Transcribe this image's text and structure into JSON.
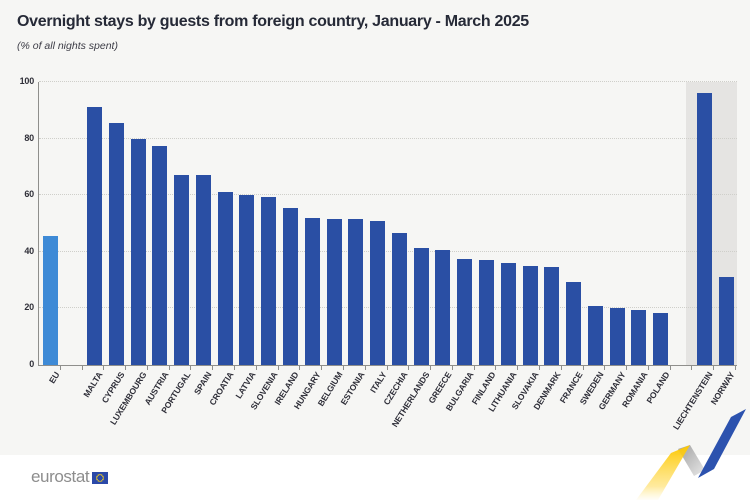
{
  "title": "Overnight stays by guests from foreign country, January - March 2025",
  "subtitle": "(% of all nights spent)",
  "brand": {
    "logo_text": "eurostat"
  },
  "colors": {
    "background": "#f6f6f4",
    "footer_background": "#ffffff",
    "bar_default": "#2a4fa4",
    "bar_eu_aggregate": "#3e8ad6",
    "efta_shade": "#e5e4e2",
    "title_text": "#262a37",
    "axis": "#8f8f8c",
    "brand_blue": "#2c52ae",
    "brand_yellow": "#fdc800",
    "brand_grey": "#bfbfbf"
  },
  "chart_data": {
    "type": "bar",
    "title": "Overnight stays by guests from foreign country, January - March 2025",
    "subtitle": "(% of all nights spent)",
    "ylabel": "% of all nights spent",
    "ylim": [
      0,
      100
    ],
    "yticks": [
      0,
      20,
      40,
      60,
      80,
      100
    ],
    "grid": "horizontal-dotted",
    "legend": "none",
    "groups": [
      {
        "id": "eu-aggregate",
        "bars": [
          {
            "label": "EU",
            "value": 45.5,
            "color_key": "bar_eu_aggregate"
          }
        ]
      },
      {
        "id": "eu-members",
        "bars": [
          {
            "label": "MALTA",
            "value": 91
          },
          {
            "label": "CYPRUS",
            "value": 85.5
          },
          {
            "label": "LUXEMBOURG",
            "value": 80
          },
          {
            "label": "AUSTRIA",
            "value": 77.5
          },
          {
            "label": "PORTUGAL",
            "value": 67
          },
          {
            "label": "SPAIN",
            "value": 67
          },
          {
            "label": "CROATIA",
            "value": 61
          },
          {
            "label": "LATVIA",
            "value": 60
          },
          {
            "label": "SLOVENIA",
            "value": 59.5
          },
          {
            "label": "IRELAND",
            "value": 55.5
          },
          {
            "label": "HUNGARY",
            "value": 52
          },
          {
            "label": "BELGIUM",
            "value": 51.5
          },
          {
            "label": "ESTONIA",
            "value": 51.5
          },
          {
            "label": "ITALY",
            "value": 51
          },
          {
            "label": "CZECHIA",
            "value": 46.5
          },
          {
            "label": "NETHERLANDS",
            "value": 41.5
          },
          {
            "label": "GREECE",
            "value": 40.5
          },
          {
            "label": "BULGARIA",
            "value": 37.5
          },
          {
            "label": "FINLAND",
            "value": 37
          },
          {
            "label": "LITHUANIA",
            "value": 36
          },
          {
            "label": "SLOVAKIA",
            "value": 35
          },
          {
            "label": "DENMARK",
            "value": 34.5
          },
          {
            "label": "FRANCE",
            "value": 29.5
          },
          {
            "label": "SWEDEN",
            "value": 21
          },
          {
            "label": "GERMANY",
            "value": 20
          },
          {
            "label": "ROMANIA",
            "value": 19.5
          },
          {
            "label": "POLAND",
            "value": 18.5
          }
        ]
      },
      {
        "id": "efta",
        "shaded": true,
        "bars": [
          {
            "label": "LIECHTENSTEIN",
            "value": 96
          },
          {
            "label": "NORWAY",
            "value": 31
          }
        ]
      }
    ]
  }
}
